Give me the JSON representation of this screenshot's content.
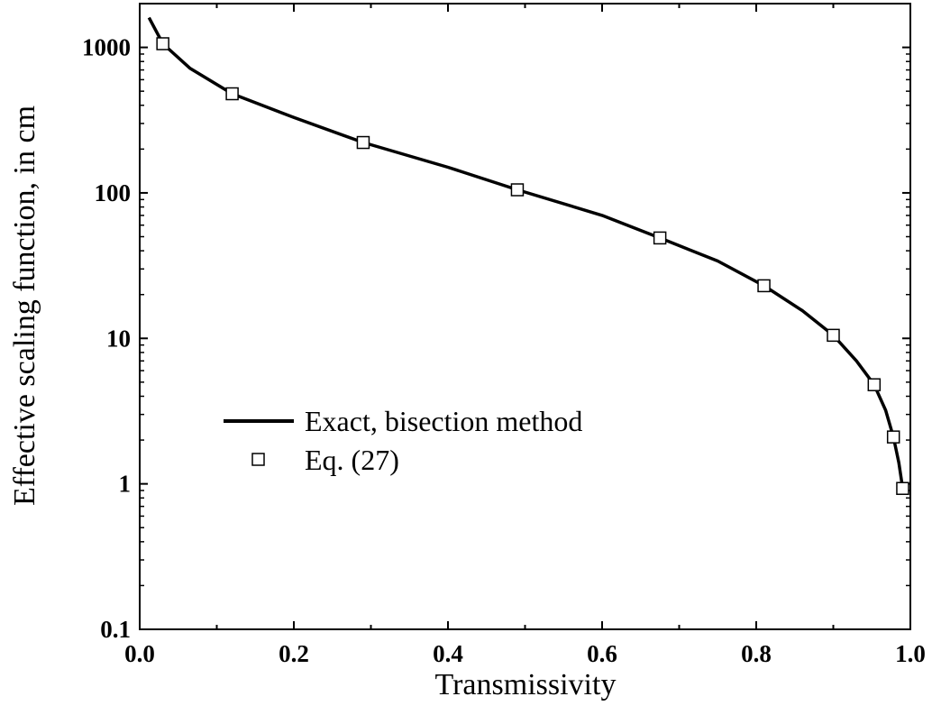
{
  "chart_data": {
    "type": "line",
    "xlabel": "Transmissivity",
    "ylabel": "Effective scaling function, in cm",
    "xlim": [
      0.0,
      1.0
    ],
    "ylim": [
      0.1,
      2000
    ],
    "y_scale": "log",
    "x_ticks": [
      0.0,
      0.2,
      0.4,
      0.6,
      0.8,
      1.0
    ],
    "x_tick_labels": [
      "0.0",
      "0.2",
      "0.4",
      "0.6",
      "0.8",
      "1.0"
    ],
    "y_ticks": [
      0.1,
      1,
      10,
      100,
      1000
    ],
    "y_tick_labels": [
      "0.1",
      "1",
      "10",
      "100",
      "1000"
    ],
    "grid": false,
    "legend_position": "middle-left",
    "series": [
      {
        "name": "Exact, bisection method",
        "style": "line",
        "color": "#000000",
        "x": [
          0.012,
          0.03,
          0.065,
          0.12,
          0.2,
          0.29,
          0.4,
          0.49,
          0.6,
          0.675,
          0.75,
          0.81,
          0.86,
          0.9,
          0.93,
          0.953,
          0.968,
          0.978,
          0.985,
          0.99
        ],
        "y": [
          1600,
          1060,
          720,
          480,
          330,
          222,
          150,
          105,
          70,
          49,
          34,
          23,
          15.5,
          10.5,
          7,
          4.8,
          3.2,
          2.1,
          1.4,
          0.93
        ]
      },
      {
        "name": "Eq. (27)",
        "style": "marker",
        "marker": "square",
        "color": "#000000",
        "x": [
          0.03,
          0.12,
          0.29,
          0.49,
          0.675,
          0.81,
          0.9,
          0.953,
          0.978,
          0.99
        ],
        "y": [
          1060,
          480,
          222,
          105,
          49,
          23,
          10.5,
          4.8,
          2.1,
          0.93
        ]
      }
    ]
  }
}
